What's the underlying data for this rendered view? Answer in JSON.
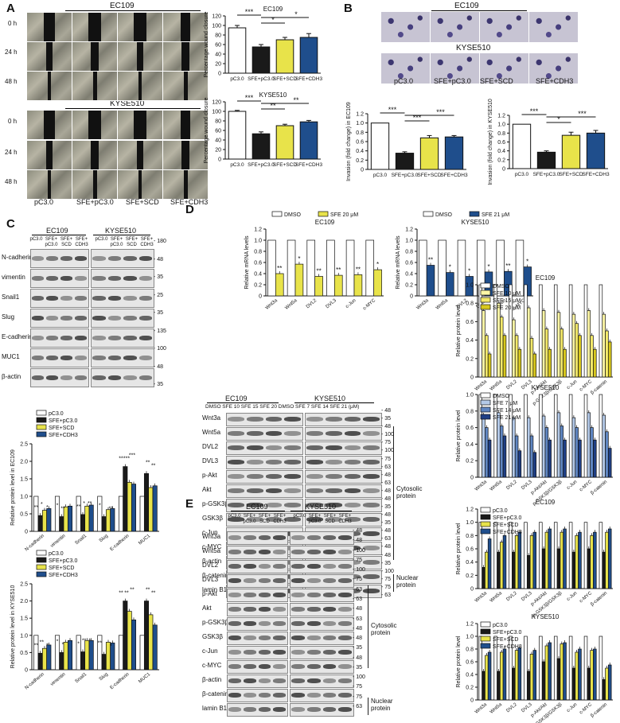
{
  "panels": {
    "A": "A",
    "B": "B",
    "C": "C",
    "D": "D",
    "E": "E"
  },
  "colors": {
    "pc30": "#ffffff",
    "sfe_pc30": "#1a1a1a",
    "sfe_scd": "#e8e34a",
    "sfe_cdh3": "#1f4e8c"
  },
  "panelA": {
    "cell_lines": [
      "EC109",
      "KYSE510"
    ],
    "time_labels": [
      "0 h",
      "24 h",
      "48 h"
    ],
    "group_labels": [
      "pC3.0",
      "SFE+pC3.0",
      "SFE+SCD",
      "SFE+CDH3"
    ]
  },
  "panelB": {
    "cell_lines": [
      "EC109",
      "KYSE510"
    ],
    "group_labels": [
      "pC3.0",
      "SFE+pC3.0",
      "SFE+SCD",
      "SFE+CDH3"
    ]
  },
  "panelC": {
    "header": [
      "EC109",
      "KYSE510"
    ],
    "lanes": [
      "pC3.0",
      "SFE+ pC3.0",
      "SFE+ SCD",
      "SFE+ CDH3",
      "pC3.0",
      "SFE+ pC3.0",
      "SFE+ SCD",
      "SFE+ CDH3"
    ],
    "proteins": [
      "N-cadherin",
      "vimentin",
      "Snail1",
      "Slug",
      "E-cadherin",
      "MUC1",
      "β-actin"
    ],
    "mw": [
      "180",
      "48",
      "35",
      "25",
      "35",
      "135",
      "100",
      "48",
      "35"
    ]
  },
  "panelD_blot": {
    "header": [
      "EC109",
      "KYSE510"
    ],
    "lanes": "DMSO SFE 10 SFE 15 SFE 20 DMSO SFE 7 SFE 14 SFE 21 (μM)",
    "proteins": [
      "Wnt3a",
      "Wnt5a",
      "DVL2",
      "DVL3",
      "p-Akt",
      "Akt",
      "p-GSK3β",
      "GSK3β",
      "c-Jun",
      "c-MYC",
      "β-actin",
      "β-catenin",
      "lamin B1"
    ],
    "mw": [
      "48",
      "35",
      "48",
      "100",
      "75",
      "100",
      "75",
      "63",
      "48",
      "63",
      "48",
      "48",
      "35",
      "48",
      "35",
      "48",
      "63",
      "48",
      "48",
      "35",
      "100",
      "75",
      "75",
      "63"
    ],
    "cytosolic": "Cytosolic protein",
    "nuclear": "Nuclear protein"
  },
  "panelE_blot": {
    "header": [
      "EC109",
      "KYSE510"
    ],
    "lanes": [
      "pC3.0",
      "SFE+ pC3.0",
      "SFE+ SCD",
      "SFE+ CDH3",
      "pC3.0",
      "SFE+ pC3.0",
      "SFE+ SCD",
      "SFE+ CDH3"
    ],
    "proteins": [
      "Wnt3a",
      "Wnt5a",
      "DVL2",
      "DVL3",
      "p-Akt",
      "Akt",
      "p-GSK3β",
      "GSK3β",
      "c-Jun",
      "c-MYC",
      "β-actin",
      "β-catenin",
      "lamin B1"
    ],
    "mw": [
      "48",
      "48",
      "100",
      "75",
      "100",
      "75",
      "63",
      "63",
      "48",
      "63",
      "48",
      "48",
      "35",
      "48",
      "35",
      "100",
      "75",
      "75",
      "63"
    ],
    "cytosolic": "Cytosolic protein",
    "nuclear": "Nuclear protein"
  },
  "chart_data": [
    {
      "id": "A_wound_EC109",
      "type": "bar",
      "title": "EC109",
      "ylabel": "Percentage wound closure",
      "ylim": [
        0,
        120
      ],
      "yticks": [
        0,
        20,
        40,
        60,
        80,
        100,
        120
      ],
      "categories": [
        "pC3.0",
        "SFE+pC3.0",
        "SFE+SCD",
        "SFE+CDH3"
      ],
      "values": [
        95,
        55,
        70,
        75
      ],
      "errors": [
        5,
        5,
        5,
        8
      ],
      "sig": [
        "***",
        "*",
        "*"
      ],
      "colors": [
        "#ffffff",
        "#1a1a1a",
        "#e8e34a",
        "#1f4e8c"
      ]
    },
    {
      "id": "A_wound_KYSE510",
      "type": "bar",
      "title": "KYSE510",
      "ylabel": "Percentage wound closure",
      "ylim": [
        0,
        120
      ],
      "yticks": [
        0,
        20,
        40,
        60,
        80,
        100,
        120
      ],
      "categories": [
        "pC3.0",
        "SFE+pC3.0",
        "SFE+SCD",
        "SFE+CDH3"
      ],
      "values": [
        100,
        53,
        70,
        78
      ],
      "errors": [
        2,
        4,
        3,
        3
      ],
      "sig": [
        "***",
        "**",
        "**"
      ],
      "colors": [
        "#ffffff",
        "#1a1a1a",
        "#e8e34a",
        "#1f4e8c"
      ]
    },
    {
      "id": "B_inv_EC109",
      "type": "bar",
      "ylabel": "Invasion (fold change) in EC109",
      "ylim": [
        0,
        1.2
      ],
      "yticks": [
        0,
        0.2,
        0.4,
        0.6,
        0.8,
        1.0,
        1.2
      ],
      "categories": [
        "pC3.0",
        "SFE+pC3.0",
        "SFE+SCD",
        "SFE+CDH3"
      ],
      "values": [
        1.0,
        0.35,
        0.68,
        0.7
      ],
      "errors": [
        0,
        0.03,
        0.05,
        0.03
      ],
      "sig": [
        "***",
        "***",
        "***"
      ],
      "colors": [
        "#ffffff",
        "#1a1a1a",
        "#e8e34a",
        "#1f4e8c"
      ]
    },
    {
      "id": "B_inv_KYSE510",
      "type": "bar",
      "ylabel": "Invasion (fold change) in KYSE510",
      "ylim": [
        0,
        1.2
      ],
      "yticks": [
        0,
        0.2,
        0.4,
        0.6,
        0.8,
        1.0,
        1.2
      ],
      "categories": [
        "pC3.0",
        "SFE+pC3.0",
        "SFE+SCD",
        "SFE+CDH3"
      ],
      "values": [
        1.0,
        0.37,
        0.75,
        0.8
      ],
      "errors": [
        0,
        0.03,
        0.07,
        0.06
      ],
      "sig": [
        "***",
        "*",
        "***"
      ],
      "colors": [
        "#ffffff",
        "#1a1a1a",
        "#e8e34a",
        "#1f4e8c"
      ]
    },
    {
      "id": "C_EC109",
      "type": "bar",
      "ylabel": "Relative protein level in EC109",
      "ylim": [
        0,
        2.5
      ],
      "yticks": [
        0,
        0.5,
        1.0,
        1.5,
        2.0,
        2.5
      ],
      "legend": [
        "pC3.0",
        "SFE+pC3.0",
        "SFE+SCD",
        "SFE+CDH3"
      ],
      "categories": [
        "N-cadherin",
        "vimentin",
        "Snail1",
        "Slug",
        "E-cadherin",
        "MUC1"
      ],
      "series": [
        {
          "name": "pC3.0",
          "values": [
            1,
            1,
            1,
            1,
            1,
            1
          ]
        },
        {
          "name": "SFE+pC3.0",
          "values": [
            0.45,
            0.42,
            0.48,
            0.42,
            1.85,
            1.65
          ]
        },
        {
          "name": "SFE+SCD",
          "values": [
            0.6,
            0.7,
            0.72,
            0.62,
            1.4,
            1.25
          ]
        },
        {
          "name": "SFE+CDH3",
          "values": [
            0.65,
            0.72,
            0.75,
            0.65,
            1.35,
            1.3
          ]
        }
      ],
      "sig_labels": [
        "**",
        "*",
        "*",
        "*",
        "**",
        "**",
        "**",
        "*",
        "**",
        "*",
        "***",
        "***",
        "**",
        "**",
        "**"
      ]
    },
    {
      "id": "C_KYSE510",
      "type": "bar",
      "ylabel": "Relative protein level in KYSE510",
      "ylim": [
        0,
        2.5
      ],
      "yticks": [
        0,
        0.5,
        1.0,
        1.5,
        2.0,
        2.5
      ],
      "legend": [
        "pC3.0",
        "SFE+pC3.0",
        "SFE+SCD",
        "SFE+CDH3"
      ],
      "categories": [
        "N-cadherin",
        "vimentin",
        "Snail1",
        "Slug",
        "E-cadherin",
        "MUC1"
      ],
      "series": [
        {
          "name": "pC3.0",
          "values": [
            1,
            1,
            1,
            1,
            1,
            1
          ]
        },
        {
          "name": "SFE+pC3.0",
          "values": [
            0.48,
            0.5,
            0.52,
            0.45,
            2.0,
            2.0
          ]
        },
        {
          "name": "SFE+SCD",
          "values": [
            0.62,
            0.8,
            0.85,
            0.8,
            1.7,
            1.6
          ]
        },
        {
          "name": "SFE+CDH3",
          "values": [
            0.72,
            0.85,
            0.85,
            0.78,
            1.45,
            1.3
          ]
        }
      ],
      "sig_labels": [
        "**",
        "**",
        "*",
        "*",
        "*",
        "*",
        "*",
        "**",
        "*",
        "**",
        "**",
        "**",
        "**",
        "**",
        "**"
      ]
    },
    {
      "id": "D_mRNA_EC109",
      "type": "bar",
      "title": "EC109",
      "ylabel": "Relative mRNA levels",
      "ylim": [
        0,
        1.2
      ],
      "yticks": [
        0,
        0.2,
        0.4,
        0.6,
        0.8,
        1.0,
        1.2
      ],
      "legend": [
        "DMSO",
        "SFE 20 μM"
      ],
      "categories": [
        "Wnt3a",
        "Wnt5a",
        "DVL2",
        "DVL3",
        "c-Jun",
        "c-MYC"
      ],
      "series": [
        {
          "name": "DMSO",
          "values": [
            1,
            1,
            1,
            1,
            1,
            1
          ]
        },
        {
          "name": "SFE 20 μM",
          "values": [
            0.4,
            0.57,
            0.35,
            0.37,
            0.38,
            0.47
          ]
        }
      ],
      "sig": [
        "**",
        "*",
        "**",
        "**",
        "**",
        "*"
      ],
      "colors": [
        "#ffffff",
        "#e8e34a"
      ]
    },
    {
      "id": "D_mRNA_KYSE510",
      "type": "bar",
      "title": "KYSE510",
      "ylabel": "Relative mRNA levels",
      "ylim": [
        0,
        1.2
      ],
      "yticks": [
        0,
        0.2,
        0.4,
        0.6,
        0.8,
        1.0,
        1.2
      ],
      "legend": [
        "DMSO",
        "SFE 21 μM"
      ],
      "categories": [
        "Wnt3a",
        "Wnt5a",
        "DVL2",
        "DVL3",
        "c-Jun",
        "c-MYC"
      ],
      "series": [
        {
          "name": "DMSO",
          "values": [
            1,
            1,
            1,
            1,
            1,
            1
          ]
        },
        {
          "name": "SFE 21 μM",
          "values": [
            0.55,
            0.42,
            0.35,
            0.43,
            0.44,
            0.52
          ]
        }
      ],
      "sig": [
        "**",
        "*",
        "*",
        "*",
        "**",
        "*"
      ],
      "colors": [
        "#ffffff",
        "#1f4e8c"
      ]
    },
    {
      "id": "D_prot_EC109",
      "type": "bar",
      "title": "EC109",
      "ylabel": "Relative protein level",
      "ylim": [
        0,
        1.0
      ],
      "yticks": [
        0,
        0.2,
        0.4,
        0.6,
        0.8,
        1.0
      ],
      "legend": [
        "DMSO",
        "SFE 10 μM",
        "SFE 15 μM",
        "SFE 20 μM"
      ],
      "categories": [
        "Wnt3a",
        "Wnt5a",
        "DVL2",
        "DVL3",
        "p-Akt/Akt",
        "p-GSK3β/GSK3β",
        "c-Jun",
        "c-MYC",
        "β-catenin"
      ],
      "series": [
        {
          "name": "DMSO",
          "values": [
            1,
            1,
            1,
            1,
            1,
            1,
            1,
            1,
            1
          ]
        },
        {
          "name": "SFE 10 μM",
          "values": [
            0.72,
            0.8,
            0.62,
            0.75,
            0.72,
            0.7,
            0.68,
            0.72,
            0.68
          ]
        },
        {
          "name": "SFE 15 μM",
          "values": [
            0.45,
            0.65,
            0.45,
            0.42,
            0.52,
            0.52,
            0.58,
            0.45,
            0.5
          ]
        },
        {
          "name": "SFE 20 μM",
          "values": [
            0.25,
            0.45,
            0.3,
            0.25,
            0.3,
            0.3,
            0.45,
            0.3,
            0.38
          ]
        }
      ],
      "colors": [
        "#ffffff",
        "#fdf7a6",
        "#f3e96a",
        "#d8c81e"
      ]
    },
    {
      "id": "D_prot_KYSE510",
      "type": "bar",
      "title": "KYSE510",
      "ylabel": "Relative protein level",
      "ylim": [
        0,
        1.0
      ],
      "yticks": [
        0,
        0.2,
        0.4,
        0.6,
        0.8,
        1.0
      ],
      "legend": [
        "DMSO",
        "SFE 7 μM",
        "SFE 14 μM",
        "SFE 21 μM"
      ],
      "categories": [
        "Wnt3a",
        "Wnt5a",
        "DVL2",
        "DVL3",
        "p-Akt/Akt",
        "p-GSK3β/GSK3β",
        "c-Jun",
        "c-MYC",
        "β-catenin"
      ],
      "series": [
        {
          "name": "DMSO",
          "values": [
            1,
            1,
            1,
            1,
            1,
            1,
            1,
            1,
            1
          ]
        },
        {
          "name": "SFE 7 μM",
          "values": [
            0.75,
            0.78,
            0.72,
            0.72,
            0.74,
            0.78,
            0.72,
            0.78,
            0.75
          ]
        },
        {
          "name": "SFE 14 μM",
          "values": [
            0.6,
            0.62,
            0.5,
            0.5,
            0.6,
            0.62,
            0.6,
            0.6,
            0.55
          ]
        },
        {
          "name": "SFE 21 μM",
          "values": [
            0.45,
            0.5,
            0.32,
            0.3,
            0.45,
            0.45,
            0.45,
            0.45,
            0.35
          ]
        }
      ],
      "colors": [
        "#ffffff",
        "#b3c9e8",
        "#5f86c2",
        "#1f3f86"
      ]
    },
    {
      "id": "E_EC109",
      "type": "bar",
      "title": "EC109",
      "ylabel": "Relative protein level",
      "ylim": [
        0,
        1.2
      ],
      "yticks": [
        0,
        0.2,
        0.4,
        0.6,
        0.8,
        1.0,
        1.2
      ],
      "legend": [
        "pC3.0",
        "SFE+pC3.0",
        "SFE+SCD",
        "SFE+CDH3"
      ],
      "categories": [
        "Wnt3a",
        "Wnt5a",
        "DVL2",
        "DVL3",
        "p-Akt/Akt",
        "p-GSK3β/GSK3β",
        "c-Jun",
        "c-MYC",
        "β-catenin"
      ],
      "series": [
        {
          "name": "pC3.0",
          "values": [
            1,
            1,
            1,
            1,
            1,
            1,
            1,
            1,
            1
          ]
        },
        {
          "name": "SFE+pC3.0",
          "values": [
            0.32,
            0.55,
            0.55,
            0.5,
            0.6,
            0.6,
            0.55,
            0.6,
            0.55
          ]
        },
        {
          "name": "SFE+SCD",
          "values": [
            0.55,
            0.7,
            0.8,
            0.8,
            0.85,
            0.85,
            0.8,
            0.8,
            0.85
          ]
        },
        {
          "name": "SFE+CDH3",
          "values": [
            0.75,
            0.8,
            0.85,
            0.85,
            0.9,
            0.9,
            0.85,
            0.85,
            0.9
          ]
        }
      ]
    },
    {
      "id": "E_KYSE510",
      "type": "bar",
      "title": "KYSE510",
      "ylabel": "Relative protein level",
      "ylim": [
        0,
        1.2
      ],
      "yticks": [
        0,
        0.2,
        0.4,
        0.6,
        0.8,
        1.0,
        1.2
      ],
      "legend": [
        "pC3.0",
        "SFE+pC3.0",
        "SFE+SCD",
        "SFE+CDH3"
      ],
      "categories": [
        "Wnt3a",
        "Wnt5a",
        "DVL2",
        "DVL3",
        "p-Akt/Akt",
        "p-GSK3β/GSK3β",
        "c-Jun",
        "c-MYC",
        "β-catenin"
      ],
      "series": [
        {
          "name": "pC3.0",
          "values": [
            1,
            1,
            1,
            1,
            1,
            1,
            1,
            1,
            1
          ]
        },
        {
          "name": "SFE+pC3.0",
          "values": [
            0.45,
            0.45,
            0.5,
            0.45,
            0.6,
            0.65,
            0.5,
            0.5,
            0.32
          ]
        },
        {
          "name": "SFE+SCD",
          "values": [
            0.7,
            0.75,
            0.78,
            0.72,
            0.85,
            0.88,
            0.75,
            0.78,
            0.5
          ]
        },
        {
          "name": "SFE+CDH3",
          "values": [
            0.75,
            0.8,
            0.82,
            0.78,
            0.9,
            0.9,
            0.8,
            0.8,
            0.55
          ]
        }
      ]
    }
  ]
}
